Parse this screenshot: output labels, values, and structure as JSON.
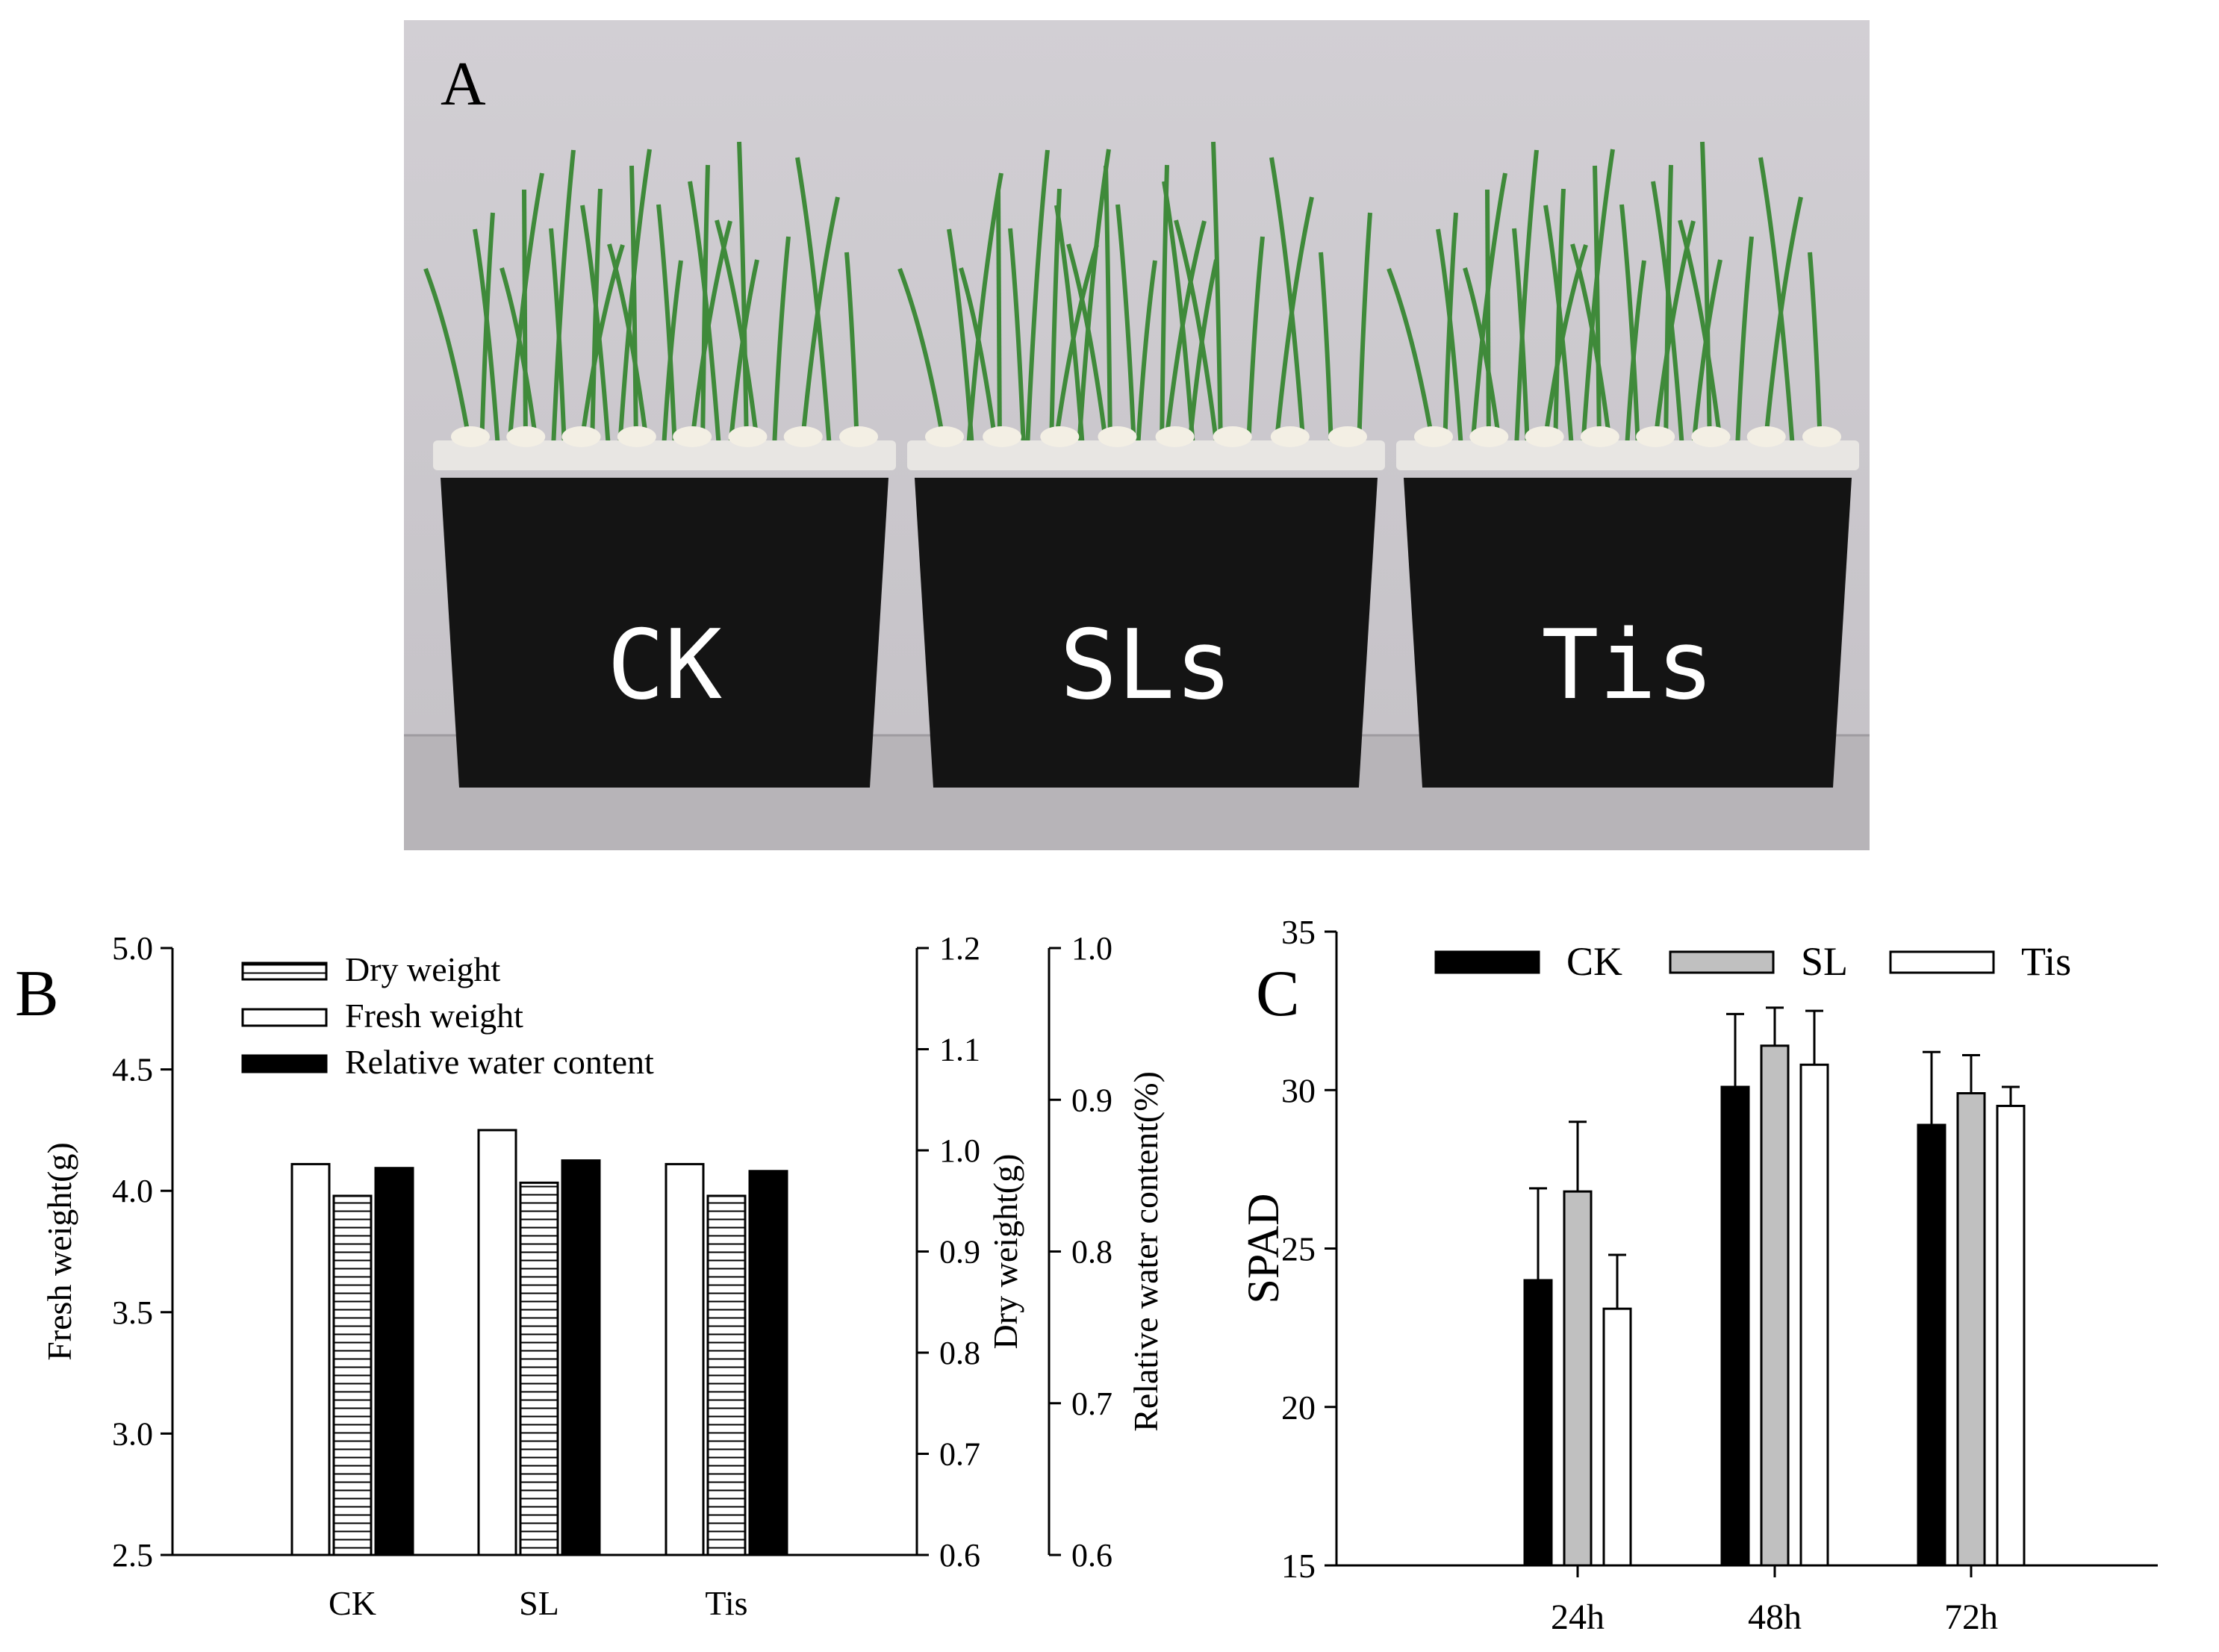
{
  "panel_a": {
    "letter": "A",
    "containers": [
      {
        "label": "CK"
      },
      {
        "label": "SLs"
      },
      {
        "label": "Tis"
      }
    ],
    "colors": {
      "wall": "#cdc9cf",
      "floor": "#b9b6ba",
      "bin": "#141414",
      "lid": "#e8e6e3",
      "leaf": "#3f8a3a"
    }
  },
  "chart_data": [
    {
      "panel": "B",
      "type": "bar",
      "categories": [
        "CK",
        "SL",
        "Tis"
      ],
      "series": [
        {
          "name": "Fresh weight",
          "axis": "Fresh weight(g)",
          "values": [
            4.11,
            4.25,
            4.11
          ],
          "fill": "#ffffff"
        },
        {
          "name": "Dry weight",
          "axis": "Dry weight(g)",
          "values": [
            0.955,
            0.968,
            0.955
          ],
          "fill": "hatch"
        },
        {
          "name": "Relative water content",
          "axis": "Relative water content(%)",
          "values": [
            0.855,
            0.86,
            0.853
          ],
          "fill": "#000000"
        }
      ],
      "axes": [
        {
          "label": "Fresh weight(g)",
          "side": "left",
          "ylim": [
            2.5,
            5.0
          ],
          "ticks": [
            "2.5",
            "3.0",
            "3.5",
            "4.0",
            "4.5",
            "5.0"
          ]
        },
        {
          "label": "Dry weight(g)",
          "side": "right",
          "ylim": [
            0.6,
            1.2
          ],
          "ticks": [
            "0.6",
            "0.7",
            "0.8",
            "0.9",
            "1.0",
            "1.1",
            "1.2"
          ]
        },
        {
          "label": "Relative water content(%)",
          "side": "right-outer",
          "ylim": [
            0.6,
            1.0
          ],
          "ticks": [
            "0.6",
            "0.7",
            "0.8",
            "0.9",
            "1.0"
          ]
        }
      ],
      "legend": "top-left"
    },
    {
      "panel": "C",
      "type": "bar",
      "categories": [
        "24h",
        "48h",
        "72h"
      ],
      "series": [
        {
          "name": "CK",
          "values": [
            24.0,
            30.1,
            28.9
          ],
          "errors": [
            2.9,
            2.3,
            2.3
          ],
          "fill": "#000000"
        },
        {
          "name": "SL",
          "values": [
            26.8,
            31.4,
            29.9
          ],
          "errors": [
            2.2,
            1.2,
            1.2
          ],
          "fill": "#c0c0c0"
        },
        {
          "name": "Tis",
          "values": [
            23.1,
            30.8,
            29.5
          ],
          "errors": [
            1.7,
            1.7,
            0.6
          ],
          "fill": "#ffffff"
        }
      ],
      "ylabel": "SPAD",
      "ylim": [
        15,
        35
      ],
      "yticks": [
        "15",
        "20",
        "25",
        "30",
        "35"
      ],
      "legend": "top"
    }
  ]
}
